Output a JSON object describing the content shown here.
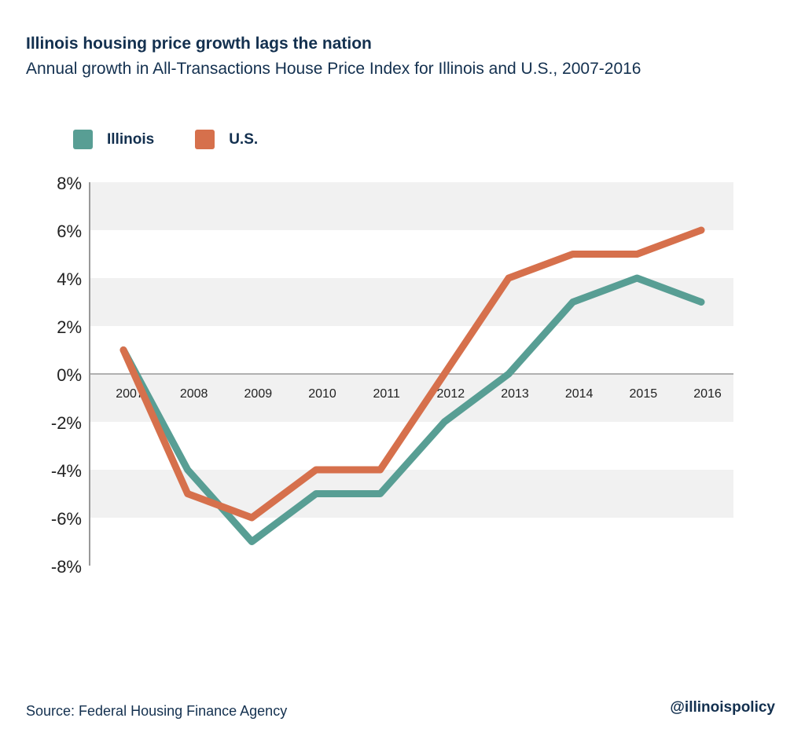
{
  "header": {
    "title": "Illinois housing price growth lags the nation",
    "subtitle": "Annual growth in All-Transactions House Price Index for Illinois and U.S., 2007-2016"
  },
  "footer": {
    "source": "Source:  Federal Housing Finance Agency",
    "handle": "@illinoispolicy"
  },
  "chart_data": {
    "type": "line",
    "title": "Illinois housing price growth lags the nation",
    "subtitle": "Annual growth in All-Transactions House Price Index for Illinois and U.S., 2007-2016",
    "x": [
      "2007",
      "2008",
      "2009",
      "2010",
      "2011",
      "2012",
      "2013",
      "2014",
      "2015",
      "2016"
    ],
    "series": [
      {
        "name": "Illinois",
        "color": "#589e94",
        "values": [
          1,
          -4,
          -7,
          -5,
          -5,
          -2,
          0,
          3,
          4,
          3
        ]
      },
      {
        "name": "U.S.",
        "color": "#d6704c",
        "values": [
          1,
          -5,
          -6,
          -4,
          -4,
          0,
          4,
          5,
          5,
          6
        ]
      }
    ],
    "ylim": [
      -8,
      8
    ],
    "yticks": [
      8,
      6,
      4,
      2,
      0,
      -2,
      -4,
      -6,
      -8
    ],
    "ytick_labels": [
      "8%",
      "6%",
      "4%",
      "2%",
      "0%",
      "-2%",
      "-4%",
      "-6%",
      "-8%"
    ],
    "grid": "alternating horizontal bands",
    "band_color": "#f1f1f1",
    "legend_position": "top-left"
  }
}
